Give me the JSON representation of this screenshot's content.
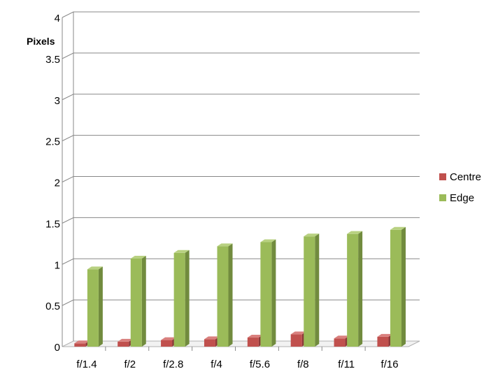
{
  "chart_data": {
    "type": "bar",
    "title": "",
    "xlabel": "",
    "ylabel": "Pixels",
    "categories": [
      "f/1.4",
      "f/2",
      "f/2.8",
      "f/4",
      "f/5.6",
      "f/8",
      "f/11",
      "f/16"
    ],
    "series": [
      {
        "name": "Centre",
        "values": [
          0.04,
          0.06,
          0.08,
          0.09,
          0.11,
          0.15,
          0.1,
          0.12
        ]
      },
      {
        "name": "Edge",
        "values": [
          0.94,
          1.07,
          1.14,
          1.22,
          1.27,
          1.34,
          1.37,
          1.42
        ]
      }
    ],
    "ylim": [
      0,
      4
    ],
    "yticks": [
      "0",
      "0.5",
      "1",
      "1.5",
      "2",
      "2.5",
      "3",
      "3.5",
      "4"
    ],
    "grid": true,
    "legend_position": "right",
    "colors": {
      "Centre": {
        "front": "#c0504d",
        "side": "#8c3a38",
        "top": "#d9807e"
      },
      "Edge": {
        "front": "#9bbb59",
        "side": "#718b3e",
        "top": "#b8d181"
      },
      "grid": "#888888",
      "floor": "#b0b0b0"
    }
  }
}
